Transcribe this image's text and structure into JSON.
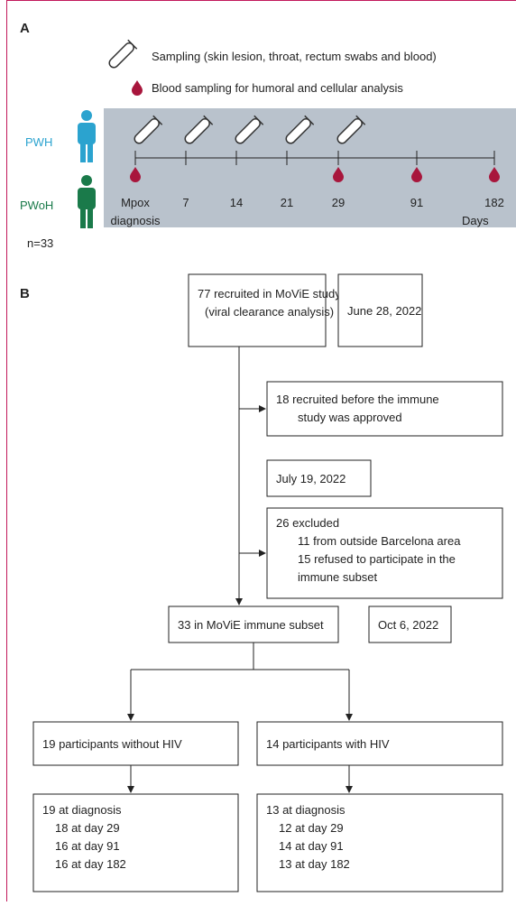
{
  "panel_a": {
    "label": "A",
    "legend": [
      "Sampling (skin lesion, throat, rectum swabs and blood)",
      "Blood sampling for humoral and cellular analysis"
    ],
    "groups": [
      "PWH",
      "PWoH"
    ],
    "n": "n=33",
    "timepoints": [
      "Mpox",
      "7",
      "14",
      "21",
      "29",
      "91",
      "182"
    ],
    "first_sub": "diagnosis",
    "days": "Days"
  },
  "panel_b": {
    "label": "B",
    "recruited": [
      "77 recruited in MoViE study",
      "(viral clearance analysis)"
    ],
    "date1": "June 28, 2022",
    "before": [
      "18 recruited before the immune",
      "study was approved"
    ],
    "date2": "July 19, 2022",
    "excluded": [
      "26 excluded",
      "11 from outside Barcelona area",
      "15 refused to participate in the",
      "immune subset"
    ],
    "subset": "33 in MoViE immune subset",
    "date3": "Oct 6, 2022",
    "without": "19 participants without HIV",
    "with": "14 participants with HIV",
    "without_followup": [
      "19 at diagnosis",
      "18 at day 29",
      "16 at day 91",
      "16 at day 182"
    ],
    "with_followup": [
      "13 at diagnosis",
      "12 at day 29",
      "14 at day 91",
      "13 at day 182"
    ]
  }
}
